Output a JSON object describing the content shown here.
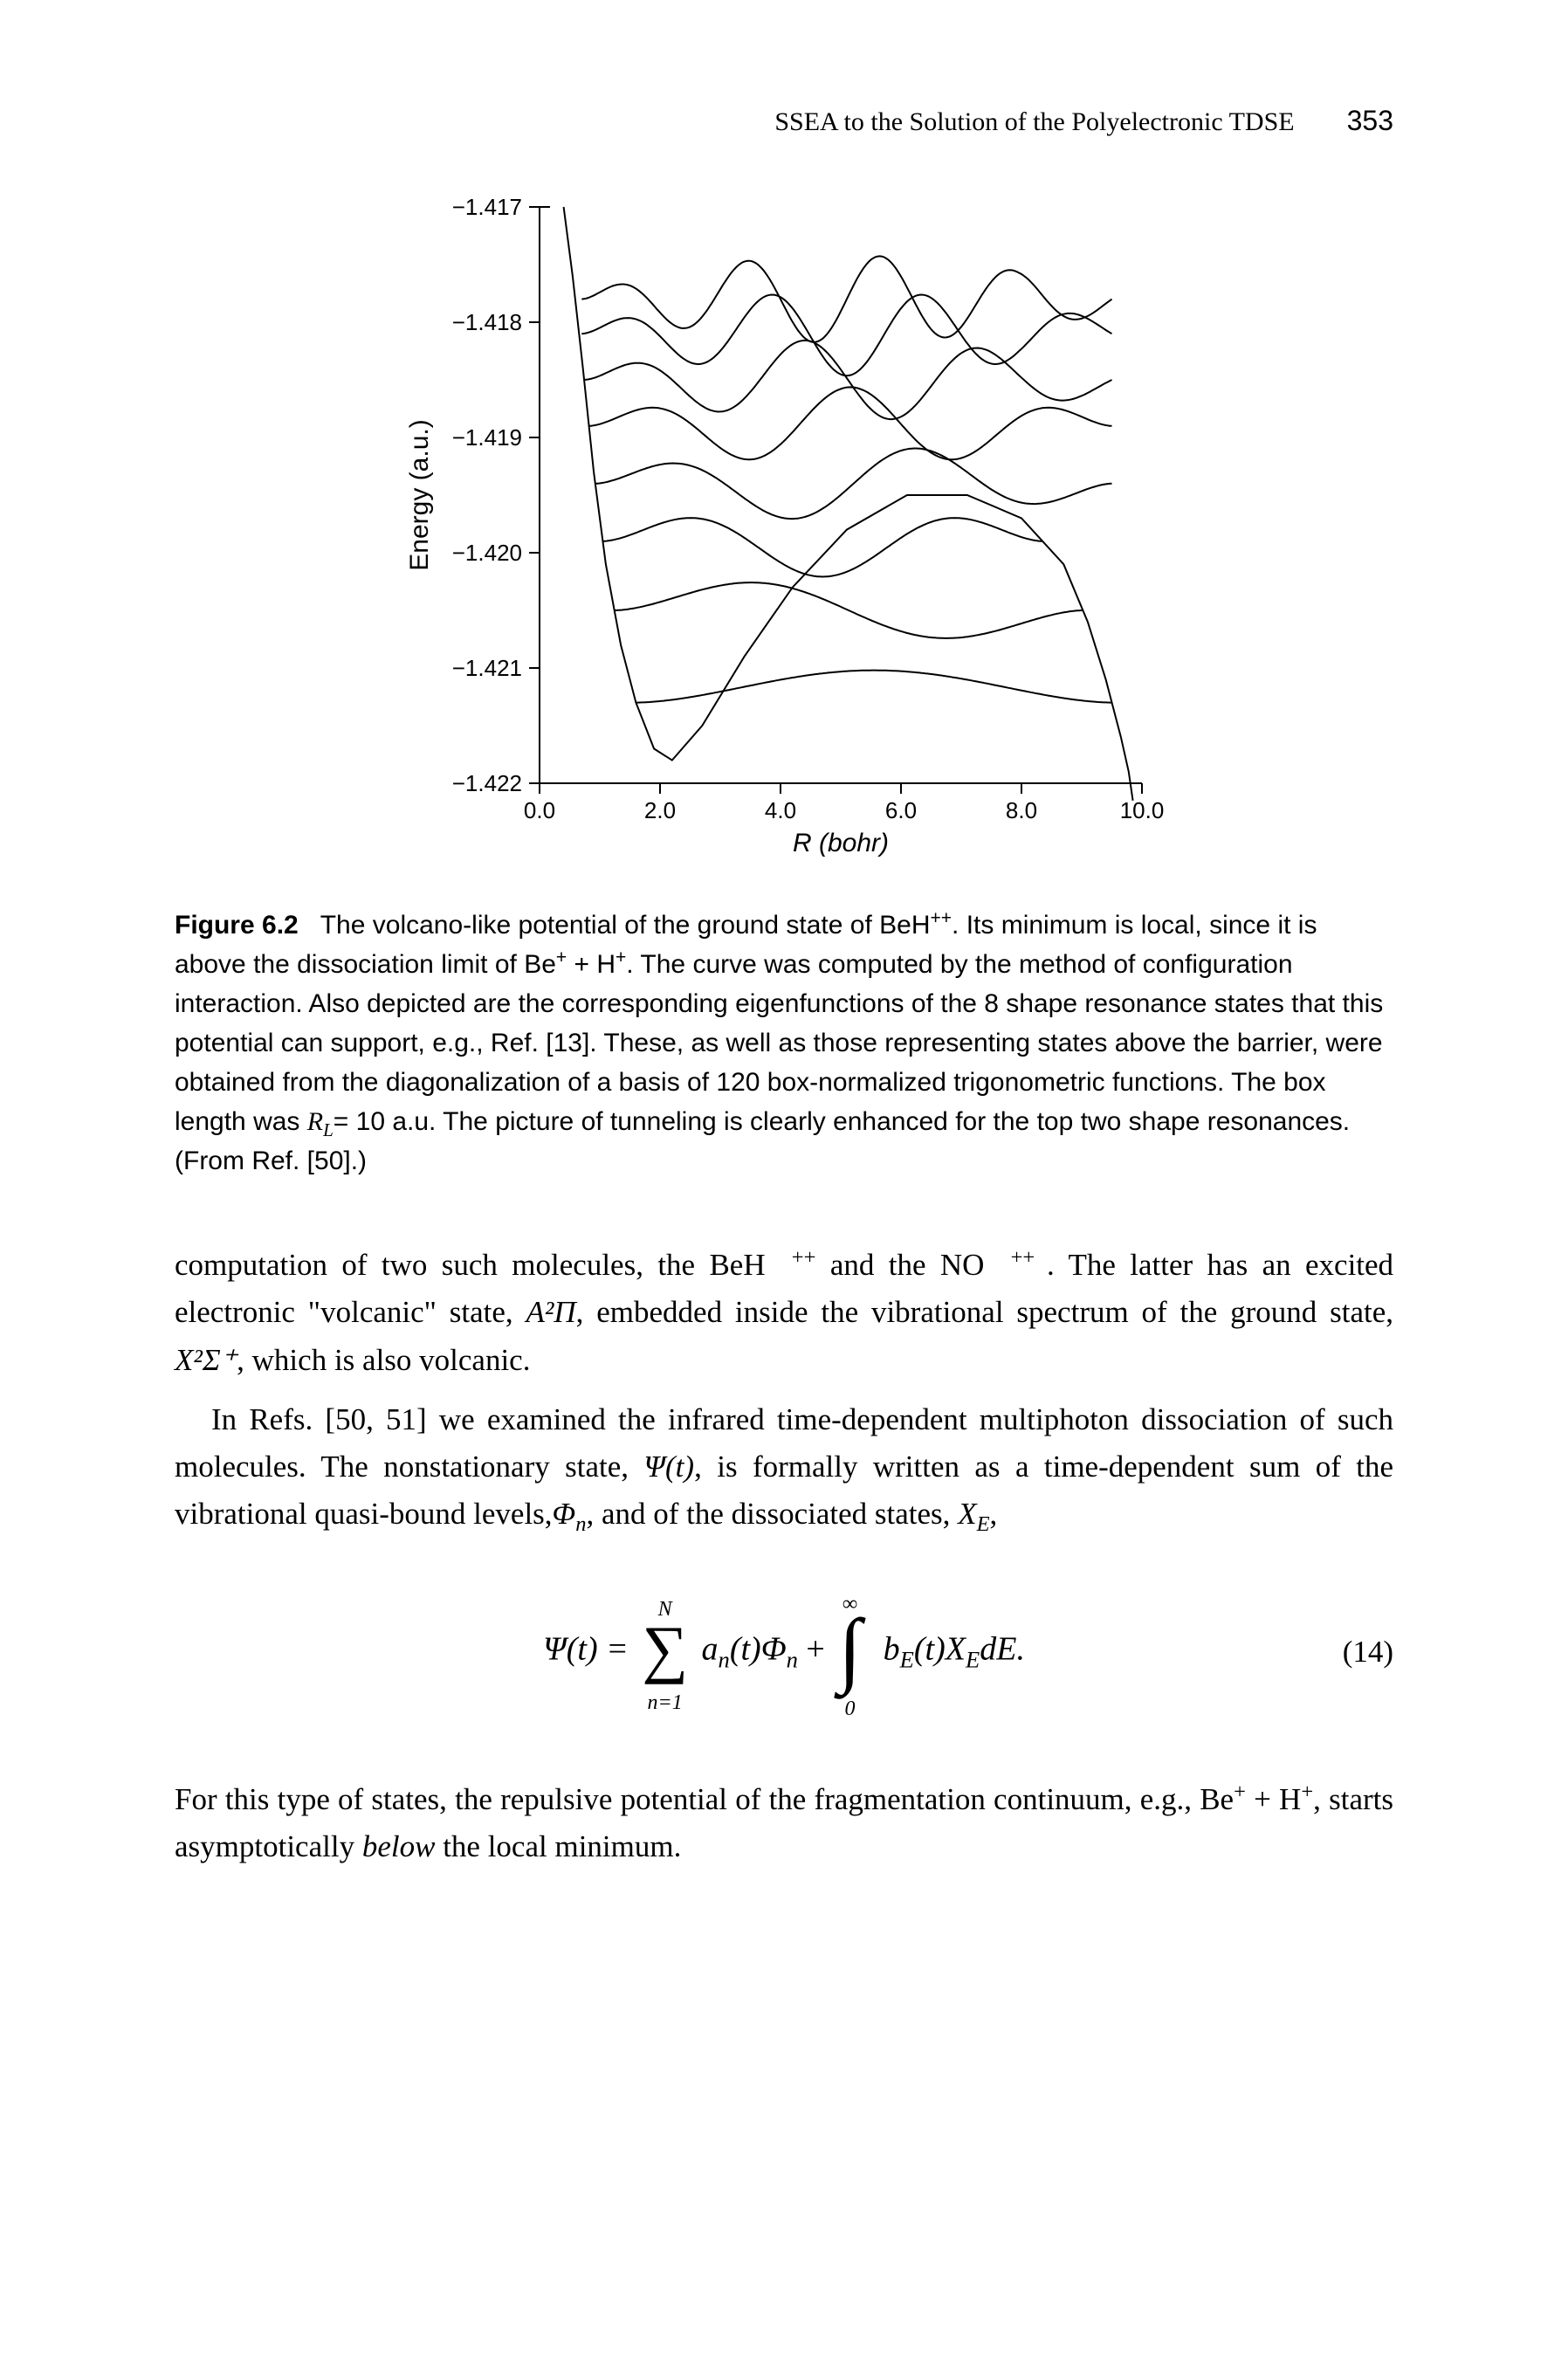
{
  "header": {
    "running_title": "SSEA to the Solution of the Polyelectronic TDSE",
    "page_number": "353"
  },
  "figure": {
    "xlabel": "R (bohr)",
    "ylabel": "Energy (a.u.)",
    "xticks": [
      "0.0",
      "2.0",
      "4.0",
      "6.0",
      "8.0",
      "10.0"
    ],
    "yticks": [
      "−1.417",
      "−1.418",
      "−1.419",
      "−1.420",
      "−1.421",
      "−1.422"
    ],
    "xlim": [
      0.0,
      10.0
    ],
    "ylim": [
      -1.422,
      -1.417
    ],
    "line_color": "#000000",
    "background_color": "#ffffff",
    "line_width": 2,
    "tick_fontsize": 26,
    "label_fontsize": 30,
    "potential": {
      "x": [
        0.4,
        0.55,
        0.72,
        0.9,
        1.1,
        1.35,
        1.6,
        1.9,
        2.2,
        2.7,
        3.4,
        4.2,
        5.1,
        6.1,
        7.1,
        8.0,
        8.7,
        9.1,
        9.4,
        9.65,
        9.78,
        9.85
      ],
      "y": [
        -1.417,
        -1.4176,
        -1.4184,
        -1.4193,
        -1.4201,
        -1.4208,
        -1.4213,
        -1.4217,
        -1.4218,
        -1.4215,
        -1.4209,
        -1.4203,
        -1.4198,
        -1.4195,
        -1.4195,
        -1.4197,
        -1.4201,
        -1.4206,
        -1.4211,
        -1.4216,
        -1.4219,
        -1.42215
      ]
    },
    "levels": [
      -1.4213,
      -1.4205,
      -1.4199,
      -1.4194,
      -1.4189,
      -1.4185,
      -1.4181,
      -1.4178
    ],
    "wf_amplitude": 0.00028,
    "wf_xstart": 1.1,
    "wf_xend": 9.5
  },
  "caption": {
    "label": "Figure 6.2",
    "text_parts": {
      "p1": "The volcano-like potential of the ground state of BeH",
      "p2": ". Its minimum is local, since it is above the dissociation limit of Be",
      "p3": " + H",
      "p4": ". The curve was computed by the method of configuration interaction. Also depicted are the corresponding eigenfunctions of the 8 shape resonance states that this potential can support, e.g., Ref. [13]. These, as well as those representing states above the barrier, were obtained from the diagonalization of a basis of 120 box-normalized trigonometric functions. The box length was ",
      "p5": "= 10 a.u. The picture of tunneling is clearly enhanced for the top two shape resonances. (From Ref. [50].)"
    }
  },
  "paragraphs": {
    "para1": {
      "a": "computation of two such molecules, the BeH",
      "b": " and the NO",
      "c": ". The latter has an excited electronic \"volcanic\" state, ",
      "d": ", embedded inside the vibrational spectrum of the ground state, ",
      "e": ", which is also volcanic."
    },
    "para2": {
      "a": "In Refs. [50, 51] we examined the infrared time-dependent multiphoton dissociation of such molecules. The nonstationary state, ",
      "b": ", is formally written as a time-dependent sum of the vibrational quasi-bound levels,",
      "c": ", and of the dissociated states, ",
      "d": ","
    },
    "para3": {
      "a": "For this type of states, the repulsive potential of the fragmentation continuum, e.g., Be",
      "b": " + H",
      "c": ", starts asymptotically ",
      "d": " the local minimum."
    }
  },
  "equation": {
    "number": "(14)",
    "lhs": "Ψ(t) = ",
    "sum_top": "N",
    "sum_bot": "n=1",
    "sum_body_a": "a",
    "sum_body_b": "(t)Φ",
    "plus": " + ",
    "int_top": "∞",
    "int_bot": "0",
    "int_body_a": "b",
    "int_body_b": "(t)X",
    "int_body_c": "dE."
  },
  "symbols": {
    "plusplus": "++",
    "plus": "+",
    "RL": "R",
    "RL_sub": "L",
    "A2Pi": "A²Π",
    "X2Sigma": "X²Σ⁺",
    "Psi_t": "Ψ(t)",
    "Phi_n": "Φ",
    "Phi_n_sub": "n",
    "XE": "X",
    "XE_sub": "E",
    "below": "below"
  }
}
